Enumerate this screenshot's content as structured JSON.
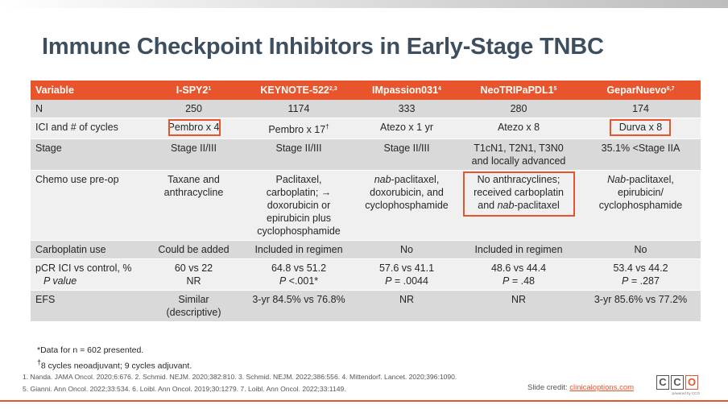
{
  "slide": {
    "title": "Immune Checkpoint Inhibitors in Early-Stage TNBC"
  },
  "table": {
    "headers": [
      {
        "text": "Variable",
        "sup": ""
      },
      {
        "text": "I-SPY2",
        "sup": "1"
      },
      {
        "text": "KEYNOTE-522",
        "sup": "2,3"
      },
      {
        "text": "IMpassion031",
        "sup": "4"
      },
      {
        "text": "NeoTRIPaPDL1",
        "sup": "5"
      },
      {
        "text": "GeparNuevo",
        "sup": "6,7"
      }
    ],
    "rows": [
      {
        "label": "N",
        "cells": [
          [
            "250"
          ],
          [
            "1174"
          ],
          [
            "333"
          ],
          [
            "280"
          ],
          [
            "174"
          ]
        ]
      },
      {
        "label": "ICI and # of cycles",
        "cells": [
          [
            "Pembro x 4"
          ],
          [
            "Pembro x 17"
          ],
          [
            "Atezo x 1 yr"
          ],
          [
            "Atezo x 8"
          ],
          [
            "Durva x 8"
          ]
        ],
        "marker": "†"
      },
      {
        "label": "Stage",
        "cells": [
          [
            "Stage II/III"
          ],
          [
            "Stage II/III"
          ],
          [
            "Stage II/III"
          ],
          [
            "T1cN1, T2N1, T3N0",
            "and locally advanced"
          ],
          [
            "35.1% <Stage IIA"
          ]
        ]
      },
      {
        "label": "Chemo use pre-op",
        "cells": [
          [
            "Taxane and",
            "anthracycline"
          ],
          [
            "Paclitaxel,",
            "carboplatin; →",
            "doxorubicin or",
            "epirubicin plus",
            "cyclophosphamide"
          ],
          [
            "nab-paclitaxel,",
            "doxorubicin, and",
            "cyclophosphamide"
          ],
          [
            "No anthracyclines;",
            "received carboplatin",
            "and nab-paclitaxel"
          ],
          [
            "Nab-paclitaxel,",
            "epirubicin/",
            "cyclophosphamide"
          ]
        ]
      },
      {
        "label": "Carboplatin use",
        "cells": [
          [
            "Could be added"
          ],
          [
            "Included in regimen"
          ],
          [
            "No"
          ],
          [
            "Included in regimen"
          ],
          [
            "No"
          ]
        ]
      },
      {
        "label_lines": [
          "pCR ICI vs control, %",
          "P value"
        ],
        "cells": [
          [
            "60 vs 22",
            "NR"
          ],
          [
            "64.8 vs 51.2",
            "P <.001*"
          ],
          [
            "57.6 vs 41.1",
            "P = .0044"
          ],
          [
            "48.6 vs 44.4",
            "P = .48"
          ],
          [
            "53.4 vs 44.2",
            "P =  .287"
          ]
        ]
      },
      {
        "label": "EFS",
        "cells": [
          [
            "Similar",
            "(descriptive)"
          ],
          [
            "3-yr 84.5% vs 76.8%"
          ],
          [
            "NR"
          ],
          [
            "NR"
          ],
          [
            "3-yr 85.6% vs 77.2%"
          ]
        ]
      }
    ]
  },
  "notes": {
    "line1": "*Data for n = 602 presented.",
    "line2_marker": "†",
    "line2": "8 cycles neoadjuvant; 9 cycles adjuvant."
  },
  "references": {
    "line1": "1. Nanda. JAMA Oncol. 2020;6:676.  2. Schmid. NEJM. 2020;382:810.  3. Schmid. NEJM. 2022;386:556.  4. Mittendorf. Lancet. 2020;396:1090.",
    "line2": "5. Gianni. Ann Oncol. 2022;33:534.  6. Loibl. Ann Oncol. 2019;30:1279.  7. Loibl. Ann Oncol. 2022;33:1149."
  },
  "credit": {
    "label": "Slide credit: ",
    "link": "clinicaloptions.com"
  },
  "logo": {
    "letters": [
      "C",
      "C",
      "O"
    ],
    "tagline": "powered by CCO",
    "accent_color": "#e8542b"
  },
  "colors": {
    "header_bg": "#e8542b",
    "row_dark": "#d9d9d9",
    "row_light": "#f0f0f0",
    "title": "#3d4f5e",
    "highlight_box": "#e8542b"
  }
}
